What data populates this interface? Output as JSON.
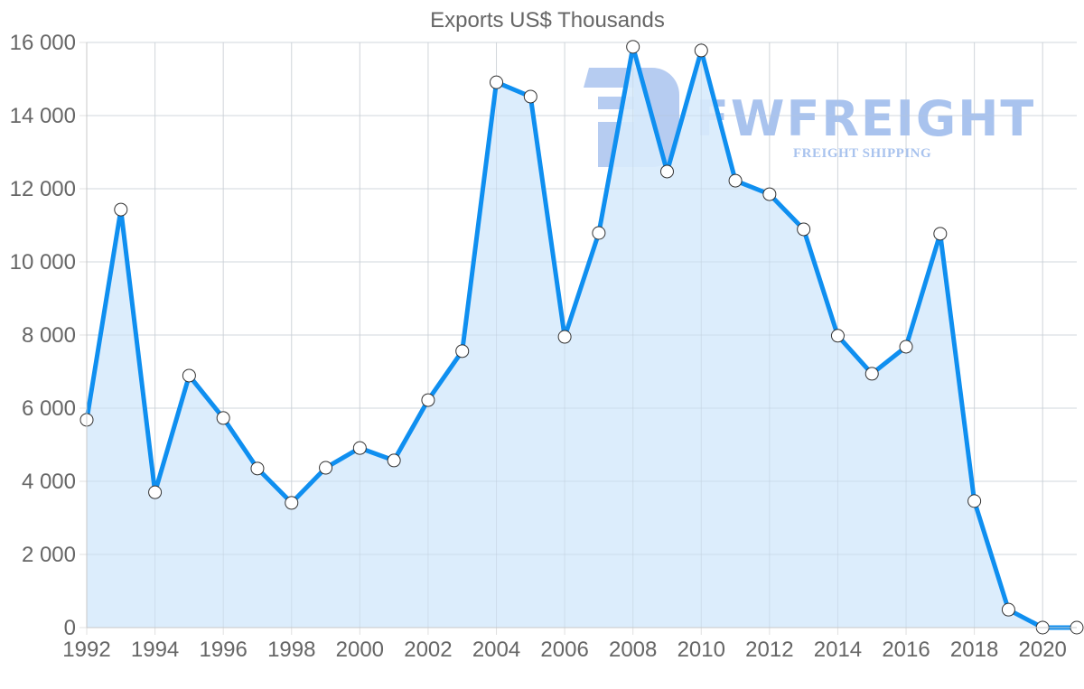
{
  "chart_data": {
    "type": "area",
    "title": "Exports US$ Thousands",
    "xlabel": "",
    "ylabel": "",
    "x": [
      1992,
      1993,
      1994,
      1995,
      1996,
      1997,
      1998,
      1999,
      2000,
      2001,
      2002,
      2003,
      2004,
      2005,
      2006,
      2007,
      2008,
      2009,
      2010,
      2011,
      2012,
      2013,
      2014,
      2015,
      2016,
      2017,
      2018,
      2019,
      2020,
      2021
    ],
    "series": [
      {
        "name": "Exports US$ Thousands",
        "values": [
          5680,
          11430,
          3700,
          6890,
          5730,
          4350,
          3410,
          4370,
          4910,
          4570,
          6220,
          7560,
          14910,
          14520,
          7950,
          10790,
          15880,
          12470,
          15780,
          12220,
          11850,
          10890,
          7980,
          6940,
          7680,
          10770,
          3460,
          490,
          0,
          0
        ]
      }
    ],
    "ylim": [
      0,
      16000
    ],
    "xlim": [
      1992,
      2021
    ],
    "y_ticks": [
      "0",
      "2 000",
      "4 000",
      "6 000",
      "8 000",
      "10 000",
      "12 000",
      "14 000",
      "16 000"
    ],
    "x_ticks": [
      "1992",
      "1994",
      "1996",
      "1998",
      "2000",
      "2002",
      "2004",
      "2006",
      "2008",
      "2010",
      "2012",
      "2014",
      "2016",
      "2018",
      "2020"
    ],
    "grid": true,
    "legend": "none",
    "colors": {
      "line": "#0f8ff0",
      "fill": "#d8ebfc",
      "marker_fill": "#ffffff",
      "marker_stroke": "#333333",
      "grid": "#e0e0e0",
      "text": "#666666"
    }
  },
  "watermark": {
    "brand": "FWFREIGHT",
    "tagline": "FREIGHT SHIPPING"
  }
}
